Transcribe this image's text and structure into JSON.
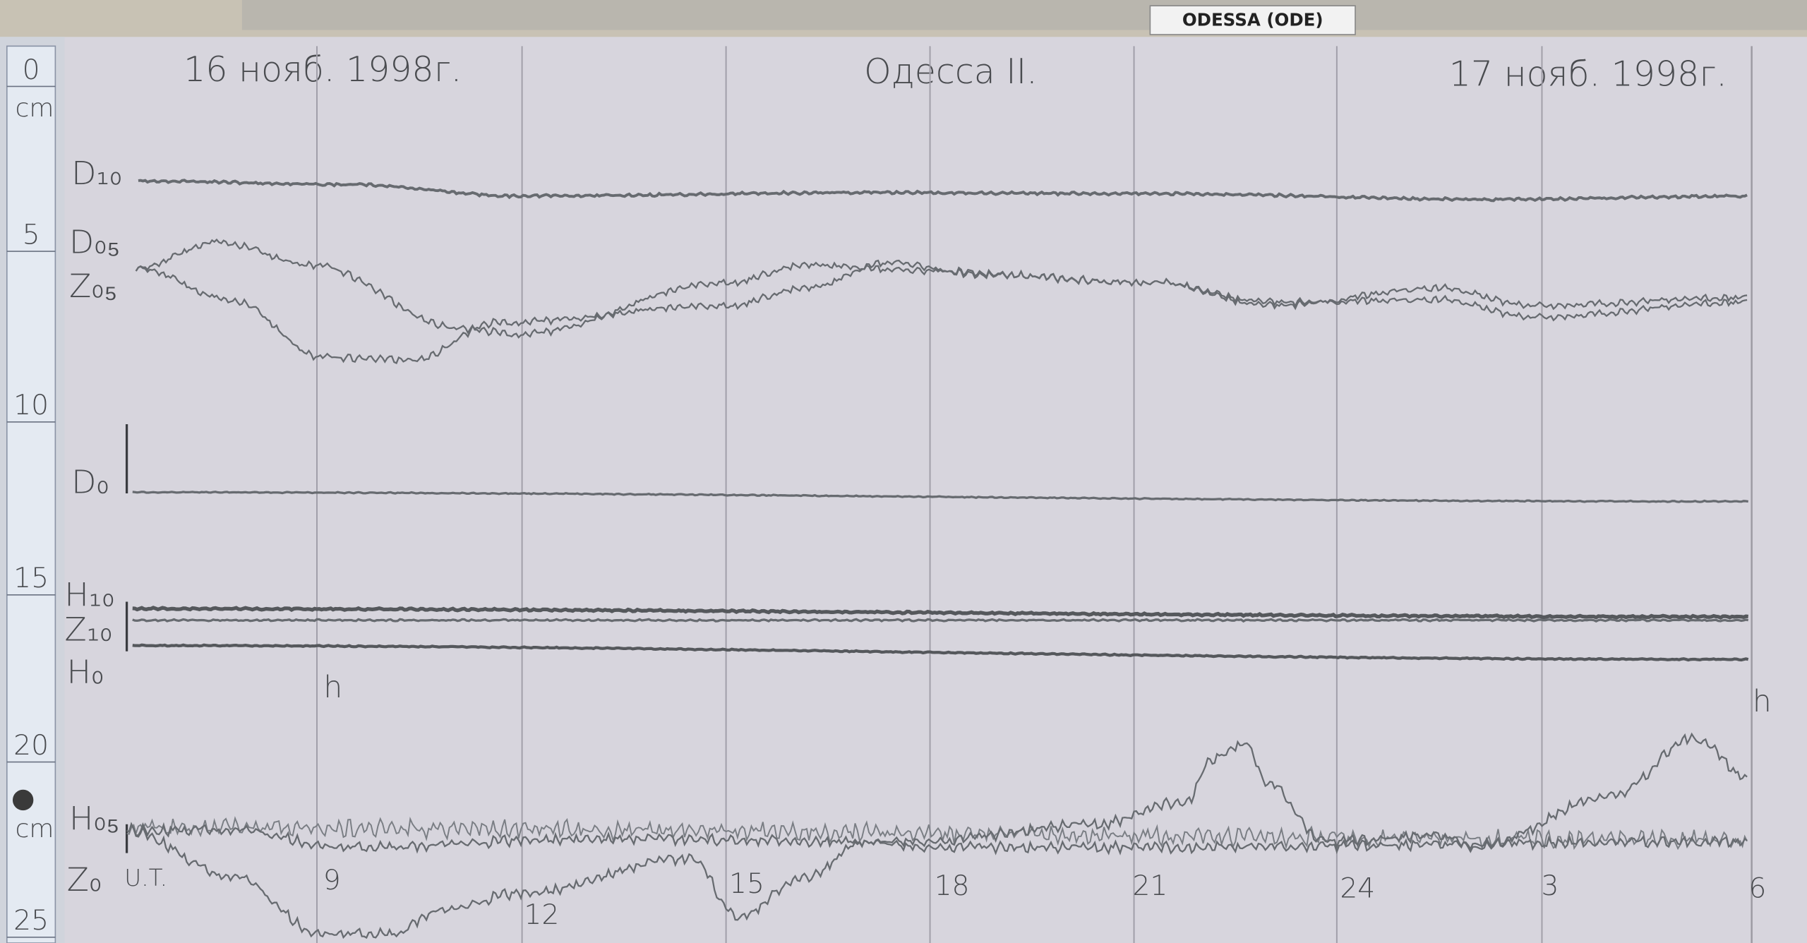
{
  "header": {
    "station": "ODESSA (ODE)"
  },
  "record": {
    "start_date": "16 нояб. 1998г.",
    "title": "Одесса II.",
    "end_date": "17 нояб. 1998г."
  },
  "scale": {
    "labels": [
      "0",
      "5",
      "10",
      "15",
      "20",
      "25"
    ],
    "units": [
      "cm",
      "cm"
    ]
  },
  "traces": {
    "labels": [
      "D₁₀",
      "D₀₅",
      "Z₀₅",
      "D₀",
      "H₁₀",
      "Z₁₀",
      "H₀",
      "H₀₅",
      "Z₀"
    ]
  },
  "time_axis": {
    "ut": "U.T.",
    "labels": [
      "9",
      "12",
      "15",
      "18",
      "21",
      "24",
      "3",
      "6"
    ],
    "units": [
      "h",
      "h"
    ]
  }
}
